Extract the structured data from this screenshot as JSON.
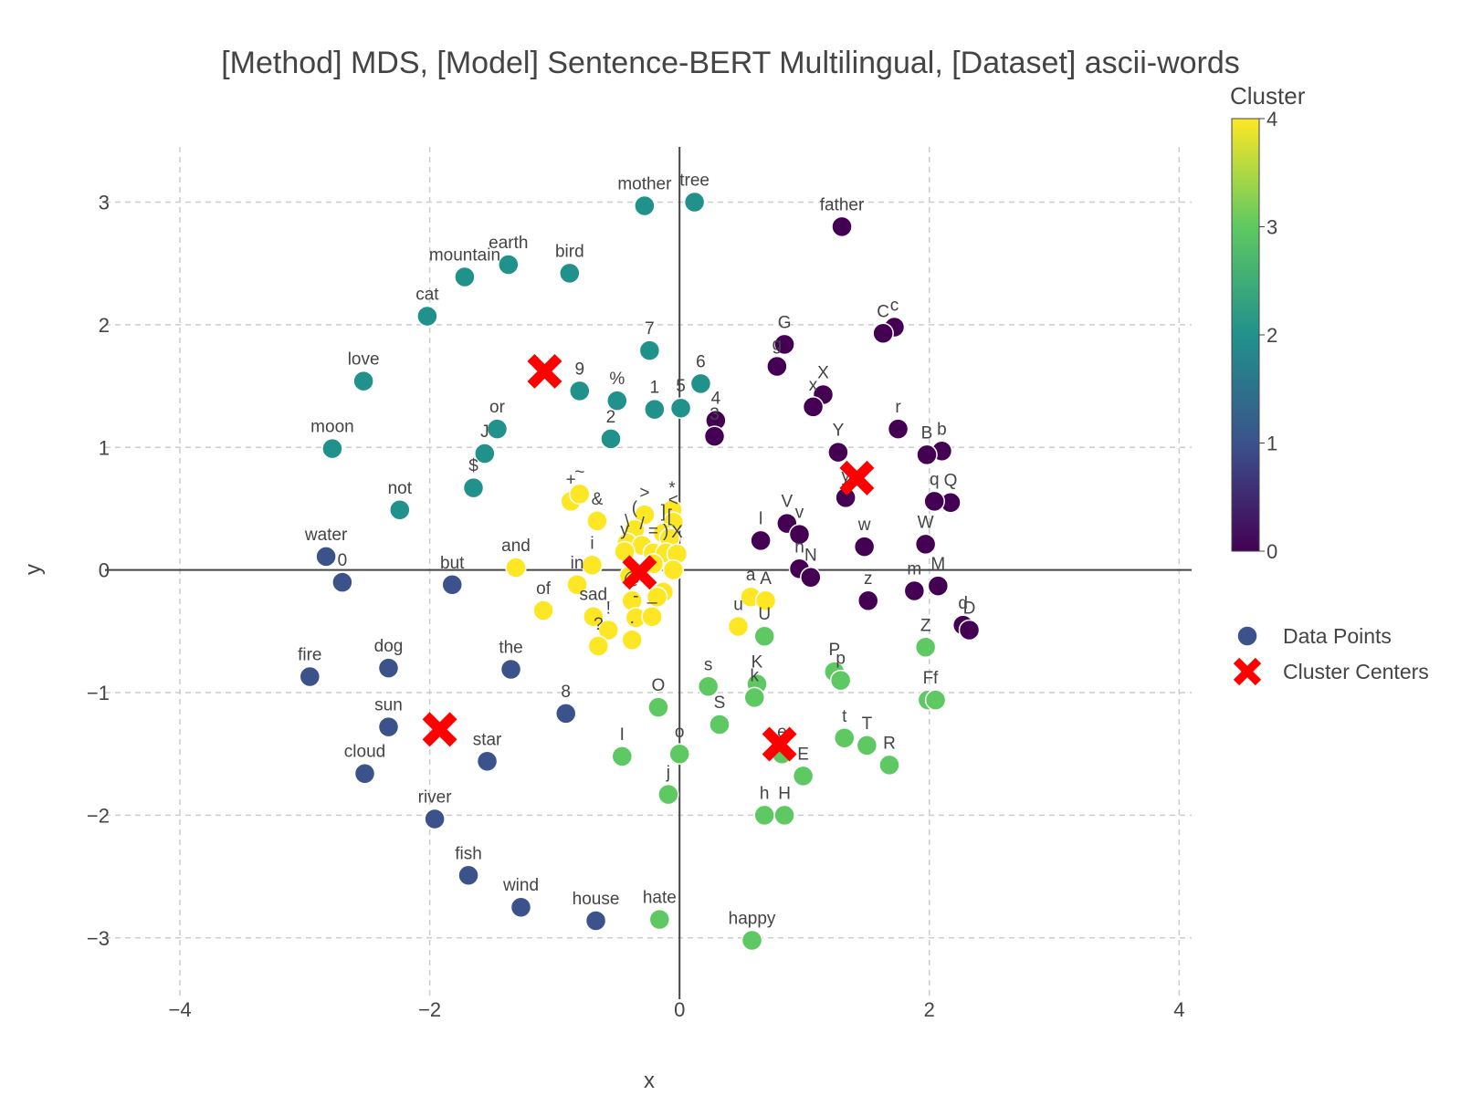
{
  "chart_data": {
    "type": "scatter",
    "title": "[Method] MDS, [Model] Sentence-BERT Multilingual, [Dataset] ascii-words",
    "xlabel": "x",
    "ylabel": "y",
    "xlim": [
      -4.6,
      4.1
    ],
    "ylim": [
      -3.5,
      3.45
    ],
    "x_ticks": [
      -4,
      -2,
      0,
      2,
      4
    ],
    "x_tick_labels": [
      "−4",
      "−2",
      "0",
      "2",
      "4"
    ],
    "y_ticks": [
      -3,
      -2,
      -1,
      0,
      1,
      2,
      3
    ],
    "y_tick_labels": [
      "−3",
      "−2",
      "−1",
      "0",
      "1",
      "2",
      "3"
    ],
    "grid": true,
    "colorbar": {
      "title": "Cluster",
      "ticks": [
        0,
        1,
        2,
        3,
        4
      ],
      "tick_labels": [
        "0",
        "1",
        "2",
        "3",
        "4"
      ],
      "colors": [
        "#440154",
        "#3b528b",
        "#21918c",
        "#5ec962",
        "#fde725"
      ]
    },
    "legend": {
      "position": "right",
      "items": [
        "Data Points",
        "Cluster Centers"
      ]
    },
    "cluster_colors": [
      "#440154",
      "#3b528b",
      "#21918c",
      "#5ec962",
      "#fde725"
    ],
    "center_color": "#ff0000",
    "points": [
      {
        "label": "mother",
        "x": -0.28,
        "y": 2.97,
        "c": 2
      },
      {
        "label": "tree",
        "x": 0.12,
        "y": 3.0,
        "c": 2
      },
      {
        "label": "earth",
        "x": -1.37,
        "y": 2.49,
        "c": 2
      },
      {
        "label": "mountain",
        "x": -1.72,
        "y": 2.39,
        "c": 2
      },
      {
        "label": "bird",
        "x": -0.88,
        "y": 2.42,
        "c": 2
      },
      {
        "label": "cat",
        "x": -2.02,
        "y": 2.07,
        "c": 2
      },
      {
        "label": "love",
        "x": -2.53,
        "y": 1.54,
        "c": 2
      },
      {
        "label": "moon",
        "x": -2.78,
        "y": 0.99,
        "c": 2
      },
      {
        "label": "not",
        "x": -2.24,
        "y": 0.49,
        "c": 2
      },
      {
        "label": "7",
        "x": -0.24,
        "y": 1.79,
        "c": 2
      },
      {
        "label": "9",
        "x": -0.8,
        "y": 1.46,
        "c": 2
      },
      {
        "label": "%",
        "x": -0.5,
        "y": 1.38,
        "c": 2
      },
      {
        "label": "6",
        "x": 0.17,
        "y": 1.52,
        "c": 2
      },
      {
        "label": "1",
        "x": -0.2,
        "y": 1.31,
        "c": 2
      },
      {
        "label": "5",
        "x": 0.01,
        "y": 1.32,
        "c": 2
      },
      {
        "label": "2",
        "x": -0.55,
        "y": 1.07,
        "c": 2
      },
      {
        "label": "or",
        "x": -1.46,
        "y": 1.15,
        "c": 2
      },
      {
        "label": "J",
        "x": -1.56,
        "y": 0.95,
        "c": 2
      },
      {
        "label": "$",
        "x": -1.65,
        "y": 0.67,
        "c": 2
      },
      {
        "label": "father",
        "x": 1.3,
        "y": 2.8,
        "c": 0
      },
      {
        "label": "c",
        "x": 1.72,
        "y": 1.98,
        "c": 0
      },
      {
        "label": "C",
        "x": 1.63,
        "y": 1.93,
        "c": 0
      },
      {
        "label": "G",
        "x": 0.84,
        "y": 1.84,
        "c": 0
      },
      {
        "label": "g",
        "x": 0.78,
        "y": 1.66,
        "c": 0
      },
      {
        "label": "X",
        "x": 1.15,
        "y": 1.43,
        "c": 0
      },
      {
        "label": "x",
        "x": 1.07,
        "y": 1.33,
        "c": 0
      },
      {
        "label": "4",
        "x": 0.29,
        "y": 1.22,
        "c": 0
      },
      {
        "label": "3",
        "x": 0.28,
        "y": 1.09,
        "c": 0
      },
      {
        "label": "r",
        "x": 1.75,
        "y": 1.15,
        "c": 0
      },
      {
        "label": "b",
        "x": 2.1,
        "y": 0.97,
        "c": 0
      },
      {
        "label": "B",
        "x": 1.98,
        "y": 0.94,
        "c": 0
      },
      {
        "label": "Y",
        "x": 1.27,
        "y": 0.96,
        "c": 0
      },
      {
        "label": "Q",
        "x": 2.17,
        "y": 0.55,
        "c": 0
      },
      {
        "label": "q",
        "x": 2.04,
        "y": 0.56,
        "c": 0
      },
      {
        "label": "y",
        "x": 1.33,
        "y": 0.59,
        "c": 0
      },
      {
        "label": "V",
        "x": 0.86,
        "y": 0.38,
        "c": 0
      },
      {
        "label": "v",
        "x": 0.96,
        "y": 0.29,
        "c": 0
      },
      {
        "label": "l",
        "x": 0.65,
        "y": 0.24,
        "c": 0
      },
      {
        "label": "W",
        "x": 1.97,
        "y": 0.21,
        "c": 0
      },
      {
        "label": "w",
        "x": 1.48,
        "y": 0.19,
        "c": 0
      },
      {
        "label": "n",
        "x": 0.96,
        "y": 0.01,
        "c": 0
      },
      {
        "label": "N",
        "x": 1.05,
        "y": -0.06,
        "c": 0
      },
      {
        "label": "M",
        "x": 2.07,
        "y": -0.13,
        "c": 0
      },
      {
        "label": "m",
        "x": 1.88,
        "y": -0.17,
        "c": 0
      },
      {
        "label": "z",
        "x": 1.51,
        "y": -0.25,
        "c": 0
      },
      {
        "label": "d",
        "x": 2.27,
        "y": -0.45,
        "c": 0
      },
      {
        "label": "D",
        "x": 2.32,
        "y": -0.49,
        "c": 0
      },
      {
        "label": "water",
        "x": -2.83,
        "y": 0.11,
        "c": 1
      },
      {
        "label": "0",
        "x": -2.7,
        "y": -0.1,
        "c": 1
      },
      {
        "label": "but",
        "x": -1.82,
        "y": -0.12,
        "c": 1
      },
      {
        "label": "fire",
        "x": -2.96,
        "y": -0.87,
        "c": 1
      },
      {
        "label": "dog",
        "x": -2.33,
        "y": -0.8,
        "c": 1
      },
      {
        "label": "the",
        "x": -1.35,
        "y": -0.81,
        "c": 1
      },
      {
        "label": "sun",
        "x": -2.33,
        "y": -1.28,
        "c": 1
      },
      {
        "label": "8",
        "x": -0.91,
        "y": -1.17,
        "c": 1
      },
      {
        "label": "star",
        "x": -1.54,
        "y": -1.56,
        "c": 1
      },
      {
        "label": "cloud",
        "x": -2.52,
        "y": -1.66,
        "c": 1
      },
      {
        "label": "river",
        "x": -1.96,
        "y": -2.03,
        "c": 1
      },
      {
        "label": "fish",
        "x": -1.69,
        "y": -2.49,
        "c": 1
      },
      {
        "label": "wind",
        "x": -1.27,
        "y": -2.75,
        "c": 1
      },
      {
        "label": "house",
        "x": -0.67,
        "y": -2.86,
        "c": 1
      },
      {
        "label": "hate",
        "x": -0.16,
        "y": -2.85,
        "c": 3
      },
      {
        "label": "happy",
        "x": 0.58,
        "y": -3.02,
        "c": 3
      },
      {
        "label": "U",
        "x": 0.68,
        "y": -0.54,
        "c": 3
      },
      {
        "label": "Z",
        "x": 1.97,
        "y": -0.63,
        "c": 3
      },
      {
        "label": "P",
        "x": 1.24,
        "y": -0.83,
        "c": 3
      },
      {
        "label": "p",
        "x": 1.29,
        "y": -0.9,
        "c": 3
      },
      {
        "label": "K",
        "x": 0.62,
        "y": -0.93,
        "c": 3
      },
      {
        "label": "k",
        "x": 0.6,
        "y": -1.04,
        "c": 3
      },
      {
        "label": "F",
        "x": 1.99,
        "y": -1.06,
        "c": 3
      },
      {
        "label": "f",
        "x": 2.05,
        "y": -1.06,
        "c": 3
      },
      {
        "label": "O",
        "x": -0.17,
        "y": -1.12,
        "c": 3
      },
      {
        "label": "s",
        "x": 0.23,
        "y": -0.95,
        "c": 3
      },
      {
        "label": "S",
        "x": 0.32,
        "y": -1.26,
        "c": 3
      },
      {
        "label": "t",
        "x": 1.32,
        "y": -1.37,
        "c": 3
      },
      {
        "label": "T",
        "x": 1.5,
        "y": -1.43,
        "c": 3
      },
      {
        "label": "R",
        "x": 1.68,
        "y": -1.59,
        "c": 3
      },
      {
        "label": "I",
        "x": -0.46,
        "y": -1.52,
        "c": 3
      },
      {
        "label": "o",
        "x": 0.0,
        "y": -1.5,
        "c": 3
      },
      {
        "label": "e",
        "x": 0.82,
        "y": -1.5,
        "c": 3
      },
      {
        "label": "E",
        "x": 0.99,
        "y": -1.68,
        "c": 3
      },
      {
        "label": "j",
        "x": -0.09,
        "y": -1.83,
        "c": 3
      },
      {
        "label": "h",
        "x": 0.68,
        "y": -2.0,
        "c": 3
      },
      {
        "label": "H",
        "x": 0.84,
        "y": -2.0,
        "c": 3
      },
      {
        "label": "+",
        "x": -0.87,
        "y": 0.56,
        "c": 4
      },
      {
        "label": "~",
        "x": -0.8,
        "y": 0.62,
        "c": 4
      },
      {
        "label": "&",
        "x": -0.66,
        "y": 0.4,
        "c": 4
      },
      {
        "label": ">",
        "x": -0.28,
        "y": 0.45,
        "c": 4
      },
      {
        "label": "*",
        "x": -0.06,
        "y": 0.49,
        "c": 4
      },
      {
        "label": "<",
        "x": -0.05,
        "y": 0.39,
        "c": 4
      },
      {
        "label": "(",
        "x": -0.36,
        "y": 0.33,
        "c": 4
      },
      {
        "label": "]",
        "x": -0.13,
        "y": 0.3,
        "c": 4
      },
      {
        "label": "[",
        "x": -0.08,
        "y": 0.26,
        "c": 4
      },
      {
        "label": "\\",
        "x": -0.42,
        "y": 0.22,
        "c": 4
      },
      {
        "label": "/",
        "x": -0.3,
        "y": 0.2,
        "c": 4
      },
      {
        "label": "i",
        "x": -0.7,
        "y": 0.04,
        "c": 4
      },
      {
        "label": "y",
        "x": -0.44,
        "y": 0.15,
        "c": 4
      },
      {
        "label": "=",
        "x": -0.21,
        "y": 0.14,
        "c": 4
      },
      {
        "label": ")",
        "x": -0.11,
        "y": 0.14,
        "c": 4
      },
      {
        "label": "X",
        "x": -0.02,
        "y": 0.13,
        "c": 4
      },
      {
        "label": "and",
        "x": -1.31,
        "y": 0.02,
        "c": 4
      },
      {
        "label": "in",
        "x": -0.82,
        "y": -0.12,
        "c": 4
      },
      {
        "label": "a",
        "x": 0.57,
        "y": -0.22,
        "c": 4
      },
      {
        "label": "A",
        "x": 0.69,
        "y": -0.25,
        "c": 4
      },
      {
        "label": "u",
        "x": 0.47,
        "y": -0.46,
        "c": 4
      },
      {
        "label": "of",
        "x": -1.09,
        "y": -0.33,
        "c": 4
      },
      {
        "label": "sad",
        "x": -0.69,
        "y": -0.38,
        "c": 4
      },
      {
        "label": "@",
        "x": -0.38,
        "y": -0.25,
        "c": 4
      },
      {
        "label": "!",
        "x": -0.57,
        "y": -0.49,
        "c": 4
      },
      {
        "label": "?",
        "x": -0.65,
        "y": -0.62,
        "c": 4
      },
      {
        "label": "-",
        "x": -0.35,
        "y": -0.39,
        "c": 4
      },
      {
        "label": "_",
        "x": -0.22,
        "y": -0.38,
        "c": 4
      },
      {
        "label": ".",
        "x": -0.38,
        "y": -0.57,
        "c": 4
      },
      {
        "label": "",
        "x": -0.21,
        "y": 0.05,
        "c": 4
      },
      {
        "label": "",
        "x": -0.13,
        "y": -0.18,
        "c": 4
      },
      {
        "label": "",
        "x": -0.05,
        "y": 0.0,
        "c": 4
      },
      {
        "label": "",
        "x": -0.4,
        "y": -0.05,
        "c": 4
      },
      {
        "label": "",
        "x": -0.18,
        "y": -0.22,
        "c": 4
      }
    ],
    "centers": [
      {
        "x": -1.08,
        "y": 1.62
      },
      {
        "x": 1.42,
        "y": 0.75
      },
      {
        "x": -0.32,
        "y": -0.02
      },
      {
        "x": -1.92,
        "y": -1.3
      },
      {
        "x": 0.8,
        "y": -1.42
      }
    ]
  }
}
